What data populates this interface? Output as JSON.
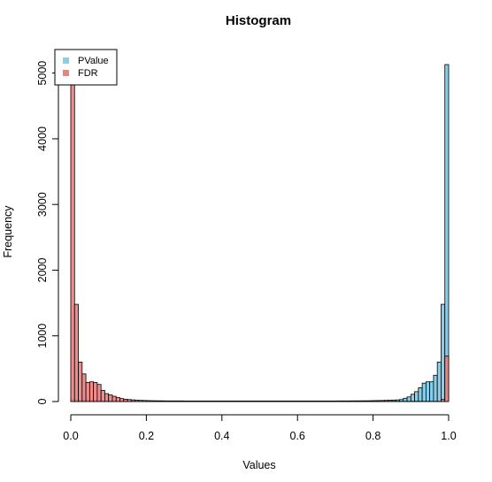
{
  "chart_data": {
    "type": "bar",
    "title": "Histogram",
    "xlabel": "Values",
    "ylabel": "Frequency",
    "xlim": [
      0,
      1
    ],
    "ylim": [
      0,
      5200
    ],
    "bin_width": 0.01,
    "x_ticks": [
      0.0,
      0.2,
      0.4,
      0.6,
      0.8,
      1.0
    ],
    "x_tick_labels": [
      "0.0",
      "0.2",
      "0.4",
      "0.6",
      "0.8",
      "1.0"
    ],
    "y_ticks": [
      0,
      1000,
      2000,
      3000,
      4000,
      5000
    ],
    "y_tick_labels": [
      "0",
      "1000",
      "2000",
      "3000",
      "4000",
      "5000"
    ],
    "legend_position": "top-left",
    "grid": false,
    "series": [
      {
        "name": "PValue",
        "color": "#87CEEB",
        "values": [
          30,
          25,
          22,
          20,
          18,
          16,
          15,
          14,
          13,
          12,
          12,
          11,
          11,
          10,
          10,
          10,
          10,
          10,
          10,
          10,
          9,
          9,
          9,
          9,
          9,
          9,
          9,
          9,
          9,
          9,
          8,
          8,
          8,
          8,
          8,
          8,
          8,
          8,
          8,
          8,
          8,
          8,
          8,
          8,
          8,
          8,
          8,
          8,
          8,
          8,
          8,
          8,
          8,
          8,
          8,
          8,
          8,
          8,
          8,
          8,
          8,
          8,
          8,
          8,
          8,
          8,
          8,
          8,
          8,
          8,
          9,
          9,
          9,
          9,
          10,
          10,
          10,
          11,
          11,
          12,
          14,
          15,
          16,
          18,
          20,
          22,
          25,
          30,
          50,
          70,
          110,
          150,
          210,
          280,
          300,
          300,
          400,
          600,
          1480,
          5130
        ]
      },
      {
        "name": "FDR",
        "color": "#F08080",
        "values": [
          4860,
          1480,
          600,
          420,
          290,
          300,
          290,
          260,
          170,
          120,
          100,
          80,
          60,
          45,
          35,
          30,
          25,
          20,
          18,
          16,
          14,
          12,
          11,
          10,
          10,
          8,
          7,
          6,
          5,
          5,
          4,
          4,
          3,
          3,
          3,
          3,
          3,
          3,
          3,
          3,
          3,
          3,
          3,
          3,
          3,
          3,
          3,
          3,
          3,
          3,
          3,
          3,
          3,
          3,
          3,
          3,
          3,
          3,
          3,
          3,
          3,
          3,
          3,
          3,
          3,
          3,
          3,
          3,
          3,
          3,
          3,
          3,
          3,
          3,
          3,
          3,
          3,
          3,
          3,
          3,
          3,
          3,
          3,
          3,
          3,
          3,
          3,
          3,
          3,
          3,
          3,
          3,
          3,
          3,
          3,
          3,
          3,
          3,
          30,
          690
        ]
      }
    ]
  }
}
